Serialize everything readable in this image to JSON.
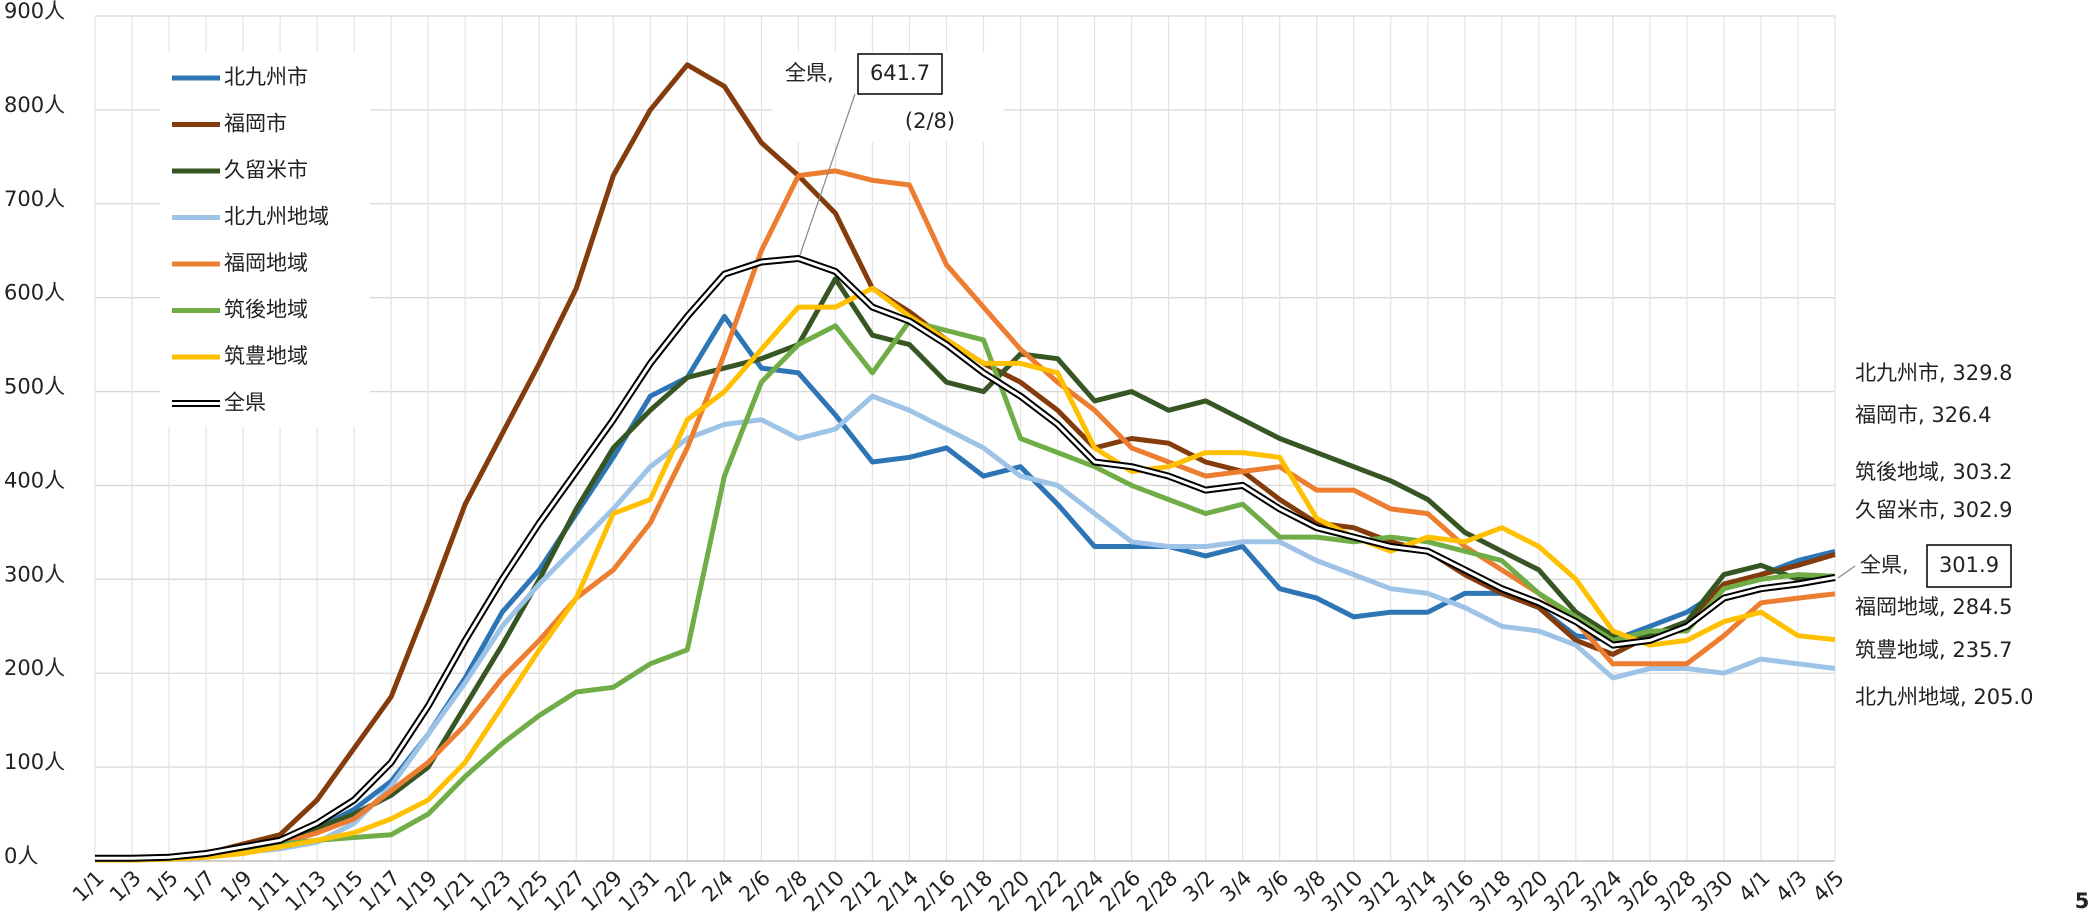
{
  "chart_data": {
    "type": "line",
    "categories": [
      "1/1",
      "1/3",
      "1/5",
      "1/7",
      "1/9",
      "1/11",
      "1/13",
      "1/15",
      "1/17",
      "1/19",
      "1/21",
      "1/23",
      "1/25",
      "1/27",
      "1/29",
      "1/31",
      "2/2",
      "2/4",
      "2/6",
      "2/8",
      "2/10",
      "2/12",
      "2/14",
      "2/16",
      "2/18",
      "2/20",
      "2/22",
      "2/24",
      "2/26",
      "2/28",
      "3/2",
      "3/4",
      "3/6",
      "3/8",
      "3/10",
      "3/12",
      "3/14",
      "3/16",
      "3/18",
      "3/20",
      "3/22",
      "3/24",
      "3/26",
      "3/28",
      "3/30",
      "4/1",
      "4/3",
      "4/5"
    ],
    "ylim": [
      0,
      900
    ],
    "yticks": [
      {
        "value": 0,
        "label": "0人"
      },
      {
        "value": 100,
        "label": "100人"
      },
      {
        "value": 200,
        "label": "200人"
      },
      {
        "value": 300,
        "label": "300人"
      },
      {
        "value": 400,
        "label": "400人"
      },
      {
        "value": 500,
        "label": "500人"
      },
      {
        "value": 600,
        "label": "600人"
      },
      {
        "value": 700,
        "label": "700人"
      },
      {
        "value": 800,
        "label": "800人"
      },
      {
        "value": 900,
        "label": "900人"
      }
    ],
    "grid": true,
    "legend": "upper left",
    "series": [
      {
        "name": "北九州市",
        "color": "#2e75b6",
        "values": [
          3,
          3,
          4,
          7,
          13,
          20,
          35,
          55,
          85,
          135,
          195,
          265,
          310,
          370,
          430,
          495,
          515,
          580,
          525,
          520,
          475,
          425,
          430,
          440,
          410,
          420,
          380,
          335,
          335,
          335,
          325,
          335,
          290,
          280,
          260,
          265,
          265,
          285,
          285,
          270,
          240,
          235,
          250,
          265,
          290,
          305,
          320,
          329.8
        ]
      },
      {
        "name": "福岡市",
        "color": "#843c0c",
        "values": [
          3,
          3,
          4,
          8,
          18,
          28,
          65,
          120,
          175,
          275,
          380,
          455,
          530,
          610,
          730,
          800,
          848,
          825,
          765,
          730,
          690,
          610,
          585,
          555,
          530,
          510,
          480,
          440,
          450,
          445,
          425,
          415,
          385,
          360,
          355,
          340,
          330,
          305,
          285,
          270,
          235,
          220,
          240,
          255,
          295,
          305,
          315,
          326.4
        ]
      },
      {
        "name": "久留米市",
        "color": "#375623",
        "values": [
          3,
          3,
          4,
          8,
          15,
          22,
          35,
          50,
          70,
          100,
          165,
          230,
          300,
          375,
          440,
          480,
          515,
          525,
          535,
          550,
          620,
          560,
          550,
          510,
          500,
          540,
          535,
          490,
          500,
          480,
          490,
          470,
          450,
          435,
          420,
          405,
          385,
          350,
          330,
          310,
          265,
          240,
          240,
          255,
          305,
          315,
          300,
          302.9
        ]
      },
      {
        "name": "北九州地域",
        "color": "#9dc3e6",
        "values": [
          2,
          2,
          3,
          5,
          9,
          13,
          20,
          40,
          80,
          135,
          190,
          250,
          295,
          335,
          375,
          420,
          450,
          465,
          470,
          450,
          460,
          495,
          480,
          460,
          440,
          410,
          400,
          370,
          340,
          335,
          335,
          340,
          340,
          320,
          305,
          290,
          285,
          270,
          250,
          245,
          230,
          195,
          205,
          205,
          200,
          215,
          210,
          205.0
        ]
      },
      {
        "name": "福岡地域",
        "color": "#ed7d31",
        "values": [
          3,
          3,
          4,
          7,
          12,
          18,
          30,
          45,
          75,
          105,
          145,
          195,
          235,
          280,
          310,
          360,
          440,
          540,
          650,
          730,
          735,
          725,
          720,
          635,
          590,
          545,
          510,
          480,
          440,
          425,
          410,
          415,
          420,
          395,
          395,
          375,
          370,
          335,
          310,
          285,
          255,
          210,
          210,
          210,
          240,
          275,
          280,
          284.5
        ]
      },
      {
        "name": "筑後地域",
        "color": "#70ad47",
        "values": [
          2,
          2,
          3,
          6,
          10,
          18,
          22,
          25,
          28,
          50,
          90,
          125,
          155,
          180,
          185,
          210,
          225,
          410,
          510,
          550,
          570,
          520,
          575,
          565,
          555,
          450,
          435,
          420,
          400,
          385,
          370,
          380,
          345,
          345,
          340,
          345,
          340,
          330,
          320,
          285,
          260,
          235,
          245,
          245,
          290,
          300,
          305,
          303.2
        ]
      },
      {
        "name": "筑豊地域",
        "color": "#ffc000",
        "values": [
          1,
          1,
          2,
          4,
          8,
          15,
          22,
          30,
          45,
          65,
          105,
          165,
          225,
          280,
          370,
          385,
          470,
          500,
          545,
          590,
          590,
          610,
          580,
          555,
          530,
          530,
          520,
          440,
          415,
          420,
          435,
          435,
          430,
          365,
          345,
          330,
          345,
          340,
          355,
          335,
          300,
          245,
          230,
          235,
          255,
          265,
          240,
          235.7
        ]
      },
      {
        "name": "全県",
        "color": "#000000",
        "values": [
          3,
          3,
          4,
          8,
          15,
          22,
          40,
          65,
          105,
          165,
          235,
          300,
          360,
          415,
          470,
          530,
          580,
          625,
          638,
          641.7,
          628,
          590,
          575,
          550,
          520,
          495,
          465,
          425,
          420,
          410,
          395,
          400,
          375,
          355,
          345,
          335,
          330,
          310,
          290,
          275,
          255,
          230,
          235,
          250,
          280,
          290,
          295,
          301.9
        ]
      }
    ],
    "annotations": [
      {
        "text": "全県,",
        "boxed": "641.7",
        "sub": "(2/8)",
        "color": "#000000"
      },
      {
        "text": "北九州市, 329.8",
        "color": "#1f4e79"
      },
      {
        "text": "福岡市, 326.4",
        "color": "#843c0c"
      },
      {
        "text": "筑後地域, 303.2",
        "color": "#70ad47"
      },
      {
        "text": "久留米市, 302.9",
        "color": "#375623"
      },
      {
        "text": "全県,",
        "boxed": "301.9",
        "color": "#000000"
      },
      {
        "text": "福岡地域, 284.5",
        "color": "#ed7d31"
      },
      {
        "text": "筑豊地域, 235.7",
        "color": "#ffc000"
      },
      {
        "text": "北九州地域, 205.0",
        "color": "#9dc3e6"
      }
    ]
  },
  "page_number": "5"
}
